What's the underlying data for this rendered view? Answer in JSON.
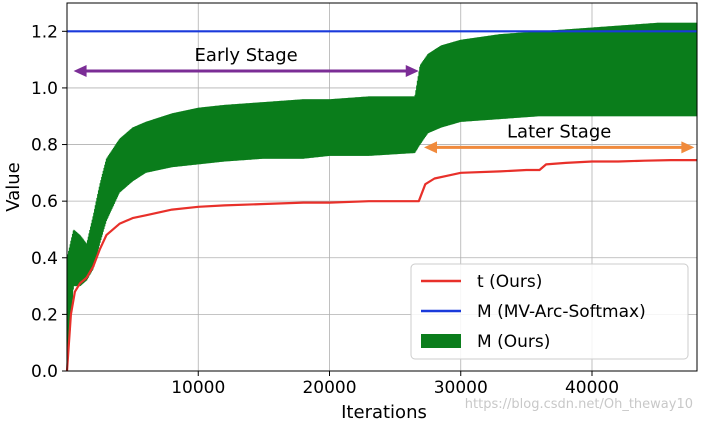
{
  "chart_data": {
    "type": "line",
    "xlabel": "Iterations",
    "ylabel": "Value",
    "xlim": [
      0,
      48000
    ],
    "ylim": [
      0,
      1.3
    ],
    "x_ticks": [
      10000,
      20000,
      30000,
      40000
    ],
    "x_tick_labels": [
      "10000",
      "20000",
      "30000",
      "40000"
    ],
    "y_ticks": [
      0.0,
      0.2,
      0.4,
      0.6,
      0.8,
      1.0,
      1.2
    ],
    "y_tick_labels": [
      "0.0",
      "0.2",
      "0.4",
      "0.6",
      "0.8",
      "1.0",
      "1.2"
    ],
    "grid": true,
    "legend_position": "lower-right",
    "series": [
      {
        "name": "t (Ours)",
        "color": "#e8302a",
        "style": "line",
        "x": [
          0,
          300,
          600,
          1000,
          1500,
          2000,
          2500,
          3000,
          4000,
          5000,
          6000,
          8000,
          10000,
          12000,
          15000,
          18000,
          20000,
          23000,
          26000,
          26800,
          27300,
          28000,
          29000,
          30000,
          33000,
          35000,
          36000,
          36500,
          38000,
          40000,
          42000,
          44000,
          46000,
          48000
        ],
        "values": [
          0.0,
          0.2,
          0.28,
          0.31,
          0.33,
          0.37,
          0.43,
          0.48,
          0.52,
          0.54,
          0.55,
          0.57,
          0.58,
          0.585,
          0.59,
          0.595,
          0.595,
          0.6,
          0.6,
          0.6,
          0.66,
          0.68,
          0.69,
          0.7,
          0.705,
          0.71,
          0.71,
          0.73,
          0.735,
          0.74,
          0.74,
          0.743,
          0.745,
          0.745
        ]
      },
      {
        "name": "M (MV-Arc-Softmax)",
        "color": "#1a3adb",
        "style": "line",
        "x": [
          0,
          48000
        ],
        "values": [
          1.2,
          1.2
        ]
      },
      {
        "name": "M (Ours)",
        "color": "#0b7d1c",
        "style": "band",
        "x": [
          0,
          500,
          1000,
          1500,
          2000,
          2500,
          3000,
          4000,
          5000,
          6000,
          8000,
          10000,
          12000,
          15000,
          18000,
          20000,
          23000,
          26500,
          26900,
          27500,
          28500,
          30000,
          33000,
          36000,
          39000,
          42000,
          45000,
          48000
        ],
        "lower": [
          0.0,
          0.3,
          0.3,
          0.32,
          0.36,
          0.45,
          0.53,
          0.63,
          0.67,
          0.7,
          0.72,
          0.73,
          0.74,
          0.75,
          0.75,
          0.76,
          0.76,
          0.77,
          0.8,
          0.84,
          0.86,
          0.88,
          0.89,
          0.9,
          0.9,
          0.9,
          0.9,
          0.9
        ],
        "upper": [
          0.4,
          0.5,
          0.48,
          0.45,
          0.55,
          0.66,
          0.75,
          0.82,
          0.86,
          0.88,
          0.91,
          0.93,
          0.94,
          0.95,
          0.96,
          0.96,
          0.97,
          0.97,
          1.08,
          1.12,
          1.15,
          1.17,
          1.19,
          1.2,
          1.21,
          1.22,
          1.23,
          1.23
        ]
      }
    ],
    "annotations": [
      {
        "text": "Early Stage",
        "arrow_color": "#7b2d96",
        "x_start": 500,
        "x_end": 26800,
        "y": 1.06
      },
      {
        "text": "Later Stage",
        "arrow_color": "#f08a3c",
        "x_start": 27200,
        "x_end": 47800,
        "y": 0.79
      }
    ]
  },
  "watermark": "https://blog.csdn.net/Oh_theway10"
}
